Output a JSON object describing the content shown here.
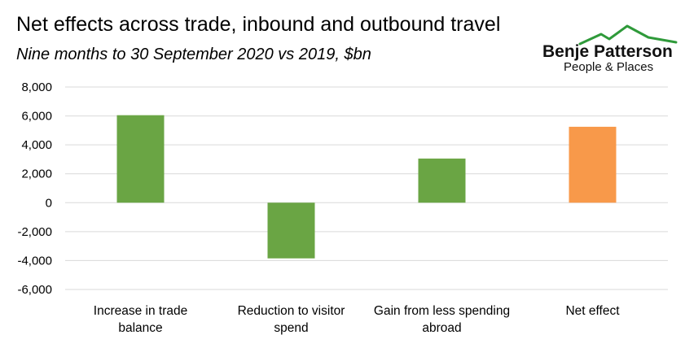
{
  "header": {
    "title": "Net effects across trade, inbound and outbound travel",
    "subtitle": "Nine months to 30 September 2020 vs 2019, $bn"
  },
  "logo": {
    "name": "Benje Patterson",
    "tagline": "People & Places",
    "color": "#2f9a3a"
  },
  "chart_data": {
    "type": "bar",
    "title": "Net effects across trade, inbound and outbound travel",
    "subtitle": "Nine months to 30 September 2020 vs 2019, $bn",
    "categories": [
      [
        "Increase in trade",
        "balance"
      ],
      [
        "Reduction to visitor",
        "spend"
      ],
      [
        "Gain from less spending",
        "abroad"
      ],
      [
        "Net effect"
      ]
    ],
    "values": [
      6050,
      -3850,
      3050,
      5250
    ],
    "colors": [
      "#6aa544",
      "#6aa544",
      "#6aa544",
      "#f8994a"
    ],
    "ylim": [
      -6000,
      8000
    ],
    "yticks": [
      8000,
      6000,
      4000,
      2000,
      0,
      -2000,
      -4000,
      -6000
    ],
    "ytick_labels": [
      "8,000",
      "6,000",
      "4,000",
      "2,000",
      "0",
      "-2,000",
      "-4,000",
      "-6,000"
    ],
    "grid": true,
    "legend": "none",
    "xlabel": "",
    "ylabel": ""
  }
}
